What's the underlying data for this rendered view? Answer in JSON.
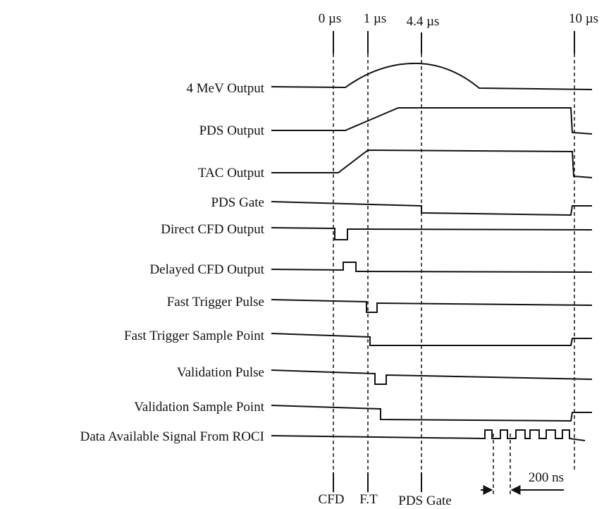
{
  "time_labels": [
    "0 µs",
    "1 µs",
    "4.4 µs",
    "10 µs"
  ],
  "signals": [
    "4 MeV Output",
    "PDS Output",
    "TAC Output",
    "PDS Gate",
    "Direct CFD Output",
    "Delayed CFD Output",
    "Fast Trigger Pulse",
    "Fast Trigger Sample Point",
    "Validation Pulse",
    "Validation Sample Point",
    "Data Available Signal From ROCI"
  ],
  "bottom_labels": [
    "CFD",
    "F.T",
    "PDS Gate"
  ],
  "interval_label": "200 ns"
}
